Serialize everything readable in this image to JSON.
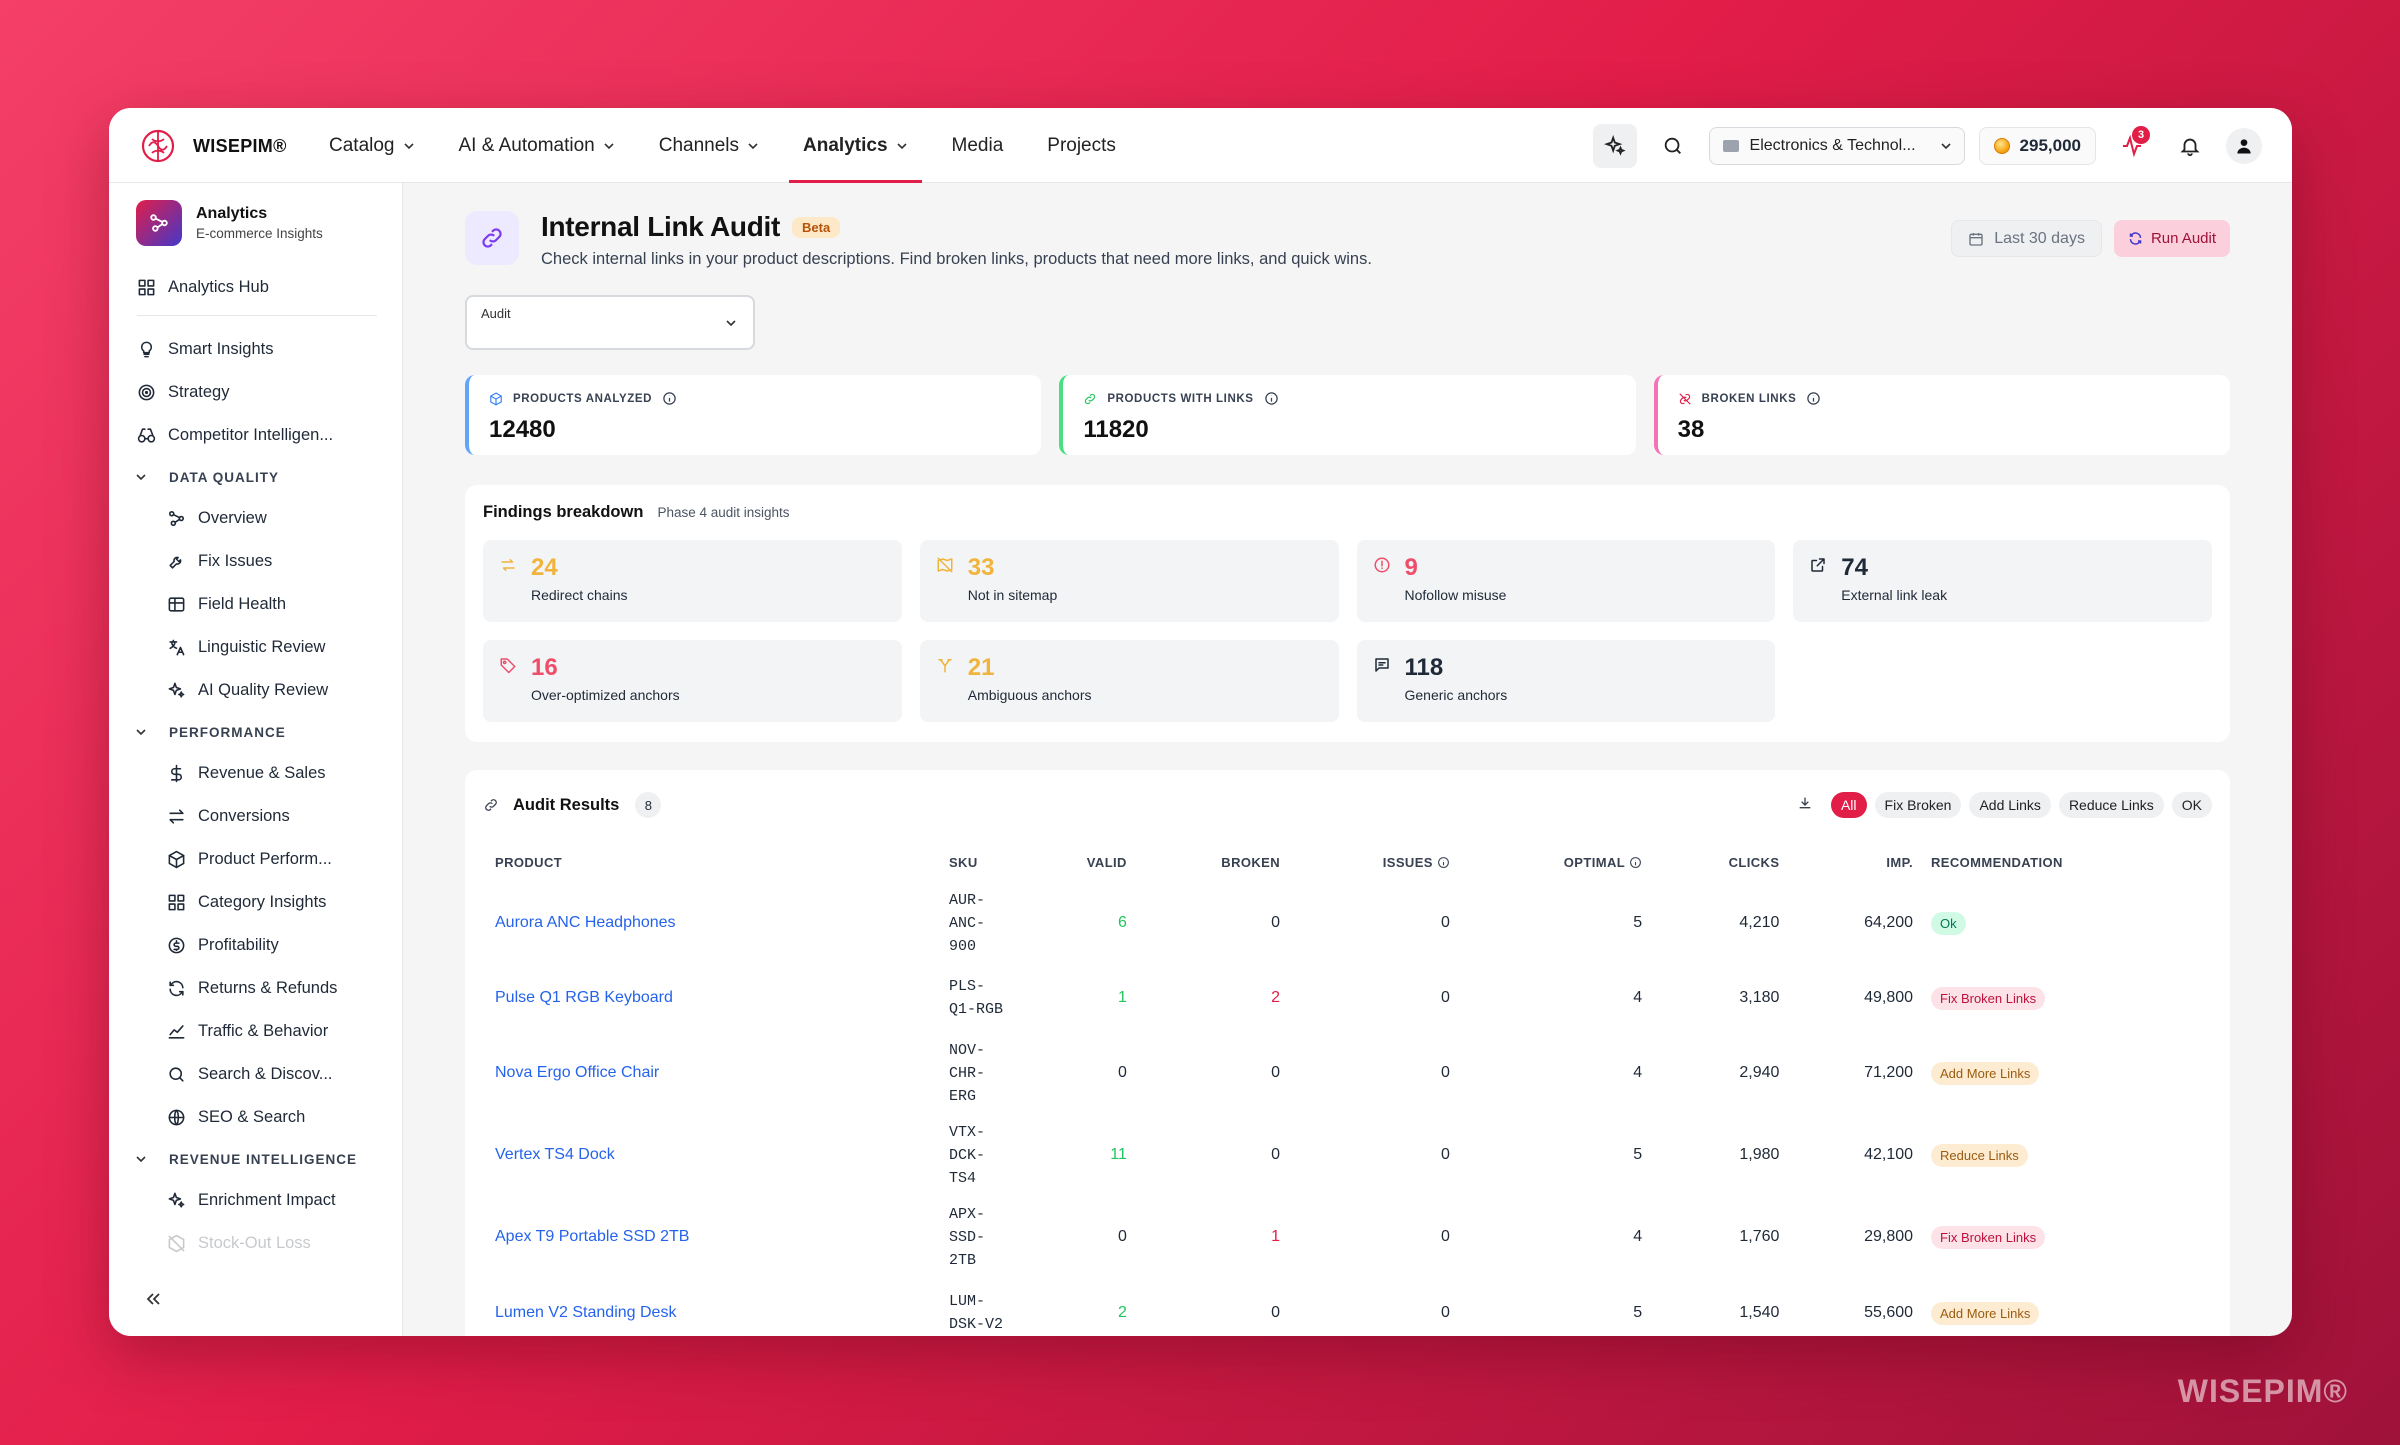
{
  "brand": {
    "name": "WISEPIM®",
    "watermark": "WISEPIM®",
    "accent": "#e11d48"
  },
  "nav": [
    {
      "label": "Catalog",
      "dropdown": true,
      "active": false
    },
    {
      "label": "AI & Automation",
      "dropdown": true,
      "active": false
    },
    {
      "label": "Channels",
      "dropdown": true,
      "active": false
    },
    {
      "label": "Analytics",
      "dropdown": true,
      "active": true
    },
    {
      "label": "Media",
      "dropdown": false,
      "active": false
    },
    {
      "label": "Projects",
      "dropdown": false,
      "active": false
    }
  ],
  "toolbar": {
    "store": "Electronics & Technol...",
    "credits": "295,000",
    "activity_badge": "3"
  },
  "sidebar": {
    "title": "Analytics",
    "subtitle": "E-commerce Insights",
    "hub": "Analytics Hub",
    "top_items": [
      {
        "label": "Smart Insights",
        "icon": "bulb-icon"
      },
      {
        "label": "Strategy",
        "icon": "target-icon"
      },
      {
        "label": "Competitor Intelligen...",
        "icon": "binoculars-icon"
      }
    ],
    "sections": [
      {
        "label": "DATA QUALITY",
        "items": [
          {
            "label": "Overview",
            "icon": "nodes-icon"
          },
          {
            "label": "Fix Issues",
            "icon": "wrench-icon"
          },
          {
            "label": "Field Health",
            "icon": "table-icon"
          },
          {
            "label": "Linguistic Review",
            "icon": "translate-icon"
          },
          {
            "label": "AI Quality Review",
            "icon": "sparkles-icon"
          }
        ]
      },
      {
        "label": "PERFORMANCE",
        "items": [
          {
            "label": "Revenue & Sales",
            "icon": "dollar-icon"
          },
          {
            "label": "Conversions",
            "icon": "arrows-icon"
          },
          {
            "label": "Product Perform...",
            "icon": "box-icon"
          },
          {
            "label": "Category Insights",
            "icon": "grid-icon"
          },
          {
            "label": "Profitability",
            "icon": "coin-icon"
          },
          {
            "label": "Returns & Refunds",
            "icon": "refresh-icon"
          },
          {
            "label": "Traffic & Behavior",
            "icon": "chart-line-icon"
          },
          {
            "label": "Search & Discov...",
            "icon": "search-icon"
          },
          {
            "label": "SEO & Search",
            "icon": "globe-icon"
          }
        ]
      },
      {
        "label": "REVENUE INTELLIGENCE",
        "items": [
          {
            "label": "Enrichment Impact",
            "icon": "sparkles-icon"
          },
          {
            "label": "Stock-Out Loss",
            "icon": "box-off-icon"
          }
        ]
      }
    ]
  },
  "page": {
    "title": "Internal Link Audit",
    "badge": "Beta",
    "description": "Check internal links in your product descriptions. Find broken links, products that need more links, and quick wins.",
    "range": "Last 30 days",
    "run": "Run Audit",
    "select_label": "Audit"
  },
  "stats": [
    {
      "label": "PRODUCTS ANALYZED",
      "value": "12480"
    },
    {
      "label": "PRODUCTS WITH LINKS",
      "value": "11820"
    },
    {
      "label": "BROKEN LINKS",
      "value": "38"
    }
  ],
  "findings": {
    "title": "Findings breakdown",
    "subtitle": "Phase 4 audit insights",
    "cards": [
      {
        "num": "24",
        "label": "Redirect chains",
        "color": "#f0b43c",
        "icon": "redirect-icon"
      },
      {
        "num": "33",
        "label": "Not in sitemap",
        "color": "#f0b43c",
        "icon": "map-off-icon"
      },
      {
        "num": "9",
        "label": "Nofollow misuse",
        "color": "#ef4e6b",
        "icon": "alert-circle-icon"
      },
      {
        "num": "74",
        "label": "External link leak",
        "color": "#1f2937",
        "icon": "external-link-icon"
      },
      {
        "num": "16",
        "label": "Over-optimized anchors",
        "color": "#ef4e6b",
        "icon": "tag-icon"
      },
      {
        "num": "21",
        "label": "Ambiguous anchors",
        "color": "#f0b43c",
        "icon": "split-icon"
      },
      {
        "num": "118",
        "label": "Generic anchors",
        "color": "#1f2937",
        "icon": "message-icon"
      }
    ]
  },
  "results": {
    "title": "Audit Results",
    "count": "8",
    "filters": [
      "All",
      "Fix Broken",
      "Add Links",
      "Reduce Links",
      "OK"
    ],
    "columns": [
      "PRODUCT",
      "SKU",
      "VALID",
      "BROKEN",
      "ISSUES",
      "OPTIMAL",
      "CLICKS",
      "IMP.",
      "RECOMMENDATION"
    ],
    "rows": [
      {
        "product": "Aurora ANC Headphones",
        "sku": [
          "AUR-",
          "ANC-",
          "900"
        ],
        "valid": "6",
        "broken": "0",
        "issues": "0",
        "optimal": "5",
        "clicks": "4,210",
        "imp": "64,200",
        "rec": "Ok",
        "rec_type": "ok"
      },
      {
        "product": "Pulse Q1 RGB Keyboard",
        "sku": [
          "PLS-",
          "Q1-RGB"
        ],
        "valid": "1",
        "broken": "2",
        "issues": "0",
        "optimal": "4",
        "clicks": "3,180",
        "imp": "49,800",
        "rec": "Fix Broken Links",
        "rec_type": "fix"
      },
      {
        "product": "Nova Ergo Office Chair",
        "sku": [
          "NOV-",
          "CHR-",
          "ERG"
        ],
        "valid": "0",
        "broken": "0",
        "issues": "0",
        "optimal": "4",
        "clicks": "2,940",
        "imp": "71,200",
        "rec": "Add More Links",
        "rec_type": "add"
      },
      {
        "product": "Vertex TS4 Dock",
        "sku": [
          "VTX-",
          "DCK-",
          "TS4"
        ],
        "valid": "11",
        "broken": "0",
        "issues": "0",
        "optimal": "5",
        "clicks": "1,980",
        "imp": "42,100",
        "rec": "Reduce Links",
        "rec_type": "red"
      },
      {
        "product": "Apex T9 Portable SSD 2TB",
        "sku": [
          "APX-",
          "SSD-",
          "2TB"
        ],
        "valid": "0",
        "broken": "1",
        "issues": "0",
        "optimal": "4",
        "clicks": "1,760",
        "imp": "29,800",
        "rec": "Fix Broken Links",
        "rec_type": "fix"
      },
      {
        "product": "Lumen V2 Standing Desk",
        "sku": [
          "LUM-",
          "DSK-V2"
        ],
        "valid": "2",
        "broken": "0",
        "issues": "0",
        "optimal": "5",
        "clicks": "1,540",
        "imp": "55,600",
        "rec": "Add More Links",
        "rec_type": "add"
      }
    ]
  }
}
